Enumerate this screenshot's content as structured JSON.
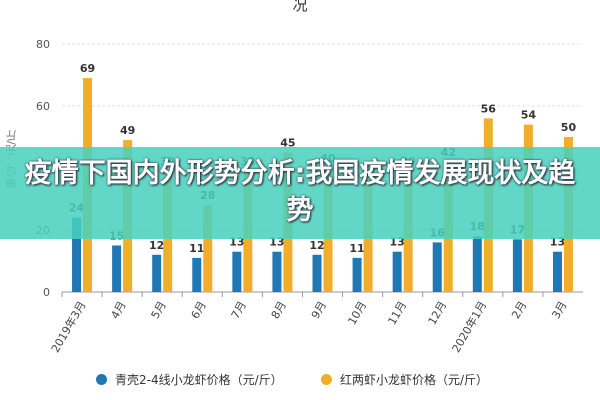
{
  "top_title_fragment": "况",
  "banner": {
    "text": "疫情下国内外形势分析:我国疫情发展现状及趋势"
  },
  "colors": {
    "series1": "#1f77b4",
    "series2": "#f0ae2a",
    "banner": "#48d0be"
  },
  "chart_data": {
    "type": "bar",
    "title": "",
    "ylabel": "单位：元/斤",
    "ylim": [
      0,
      80
    ],
    "yticks": [
      0,
      20,
      40,
      60,
      80
    ],
    "grid": true,
    "legend_position": "bottom",
    "categories": [
      "2019年3月",
      "4月",
      "5月",
      "6月",
      "7月",
      "8月",
      "9月",
      "10月",
      "11月",
      "12月",
      "2020年1月",
      "2月",
      "3月"
    ],
    "series": [
      {
        "name": "青壳2-4线小龙虾价格（元/斤）",
        "values": [
          24,
          15,
          12,
          11,
          13,
          13,
          12,
          11,
          13,
          16,
          18,
          17,
          13
        ]
      },
      {
        "name": "红两虾小龙虾价格（元/斤）",
        "values": [
          69,
          49,
          39,
          28,
          39,
          45,
          40,
          37,
          39,
          42,
          56,
          54,
          50
        ]
      }
    ]
  }
}
